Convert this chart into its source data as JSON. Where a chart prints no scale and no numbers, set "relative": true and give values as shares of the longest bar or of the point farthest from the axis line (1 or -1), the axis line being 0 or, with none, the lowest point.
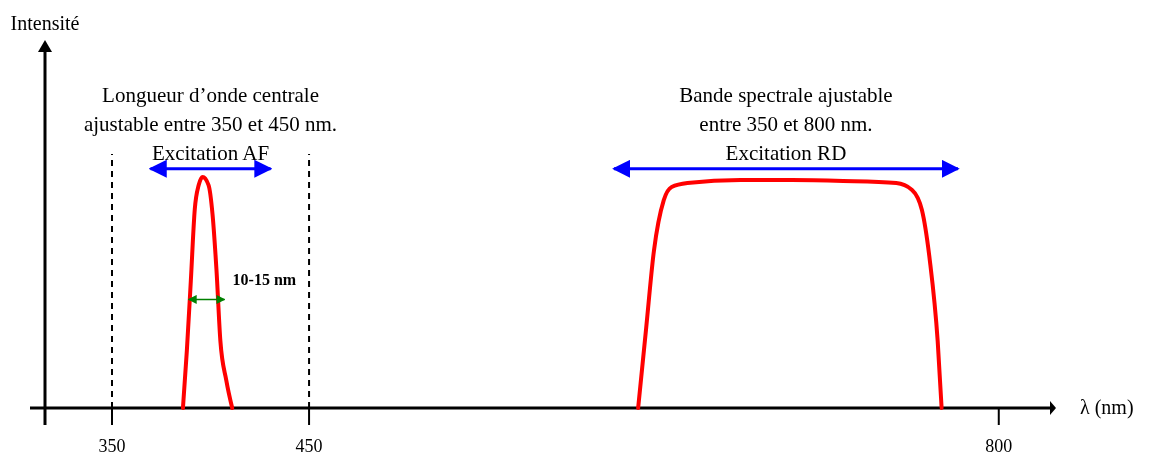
{
  "chart_data": {
    "type": "line",
    "relative": true,
    "xlabel": "λ (nm)",
    "xlim": [
      316,
      826
    ],
    "xticks": [
      350,
      450,
      800
    ],
    "line_style": "solid",
    "marker": "none",
    "grid": false,
    "series": [
      {
        "color": "#ff0000",
        "x": [
          386,
          388,
          390,
          392,
          394,
          396,
          399,
          401,
          403,
          405,
          408,
          411
        ],
        "values": [
          0,
          0.25,
          0.55,
          0.86,
          0.965,
          1,
          0.965,
          0.84,
          0.6,
          0.29,
          0.12,
          0
        ]
      },
      {
        "color": "#ff0000",
        "x": [
          617,
          621,
          625,
          630,
          634,
          642,
          669,
          695,
          721,
          748,
          756,
          761,
          765,
          769,
          771
        ],
        "values": [
          0,
          0.34,
          0.68,
          0.9,
          0.957,
          0.974,
          0.987,
          0.987,
          0.983,
          0.974,
          0.944,
          0.857,
          0.64,
          0.29,
          0
        ]
      }
    ],
    "ref_lines": [
      {
        "axis": "x",
        "value": 350,
        "color": "#000000",
        "line_style": "dashed"
      },
      {
        "axis": "x",
        "value": 450,
        "color": "#000000",
        "line_style": "dashed"
      }
    ],
    "annotations": [
      "Intensité",
      "Longueur d’onde centrale\najustable entre 350 et 450 nm.\nExcitation AF",
      "Bande spectrale ajustable\nentre 350 et 800 nm.\nExcitation RD",
      "10-15 nm"
    ]
  }
}
